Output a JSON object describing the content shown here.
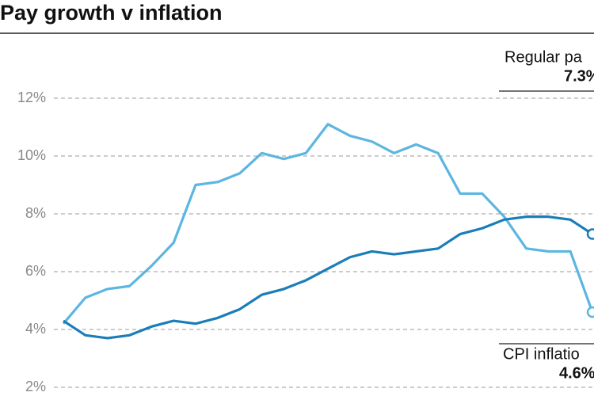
{
  "chart_data": {
    "type": "line",
    "title": "Pay growth v inflation",
    "categories": [
      null,
      null,
      null,
      null,
      null,
      null,
      null,
      null,
      null,
      null,
      null,
      null,
      null,
      null,
      null,
      null,
      null,
      null,
      null,
      null,
      null,
      null,
      null,
      null,
      null
    ],
    "series": [
      {
        "color": "#1b7db8",
        "values": [
          4.3,
          3.8,
          3.7,
          3.8,
          4.1,
          4.3,
          4.2,
          4.4,
          4.7,
          5.2,
          5.4,
          5.7,
          6.1,
          6.5,
          6.7,
          6.6,
          6.7,
          6.8,
          7.3,
          7.5,
          7.8,
          7.9,
          7.9,
          7.8,
          7.3
        ]
      },
      {
        "color": "#5cb6e0",
        "values": [
          4.2,
          5.1,
          5.4,
          5.5,
          6.2,
          7.0,
          9.0,
          9.1,
          9.4,
          10.1,
          9.9,
          10.1,
          11.1,
          10.7,
          10.5,
          10.1,
          10.4,
          10.1,
          8.7,
          8.7,
          7.9,
          6.8,
          6.7,
          6.7,
          4.6
        ]
      }
    ],
    "annotations": [
      {
        "text": "Regular pa",
        "label": "7.3%"
      },
      {
        "text": "CPI inflatio",
        "label": "4.6%"
      }
    ],
    "ylim": [
      2,
      12
    ],
    "yticks": [
      {
        "value": 2,
        "label": "2%"
      },
      {
        "value": 4,
        "label": "4%"
      },
      {
        "value": 6,
        "label": "6%"
      },
      {
        "value": 8,
        "label": "8%"
      },
      {
        "value": 10,
        "label": "10%"
      },
      {
        "value": 12,
        "label": "12%"
      }
    ],
    "grid": true
  }
}
